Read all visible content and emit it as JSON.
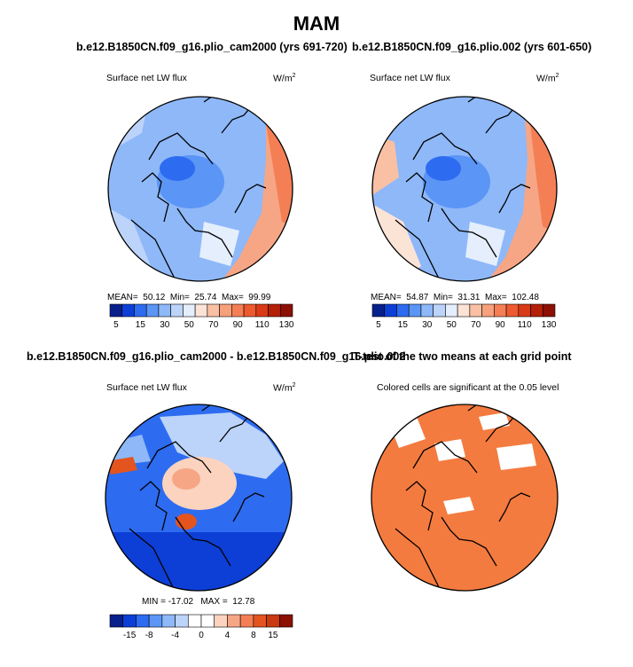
{
  "figure_title": "MAM",
  "panels": [
    {
      "title": "b.e12.B1850CN.f09_g16.plio_cam2000 (yrs 691-720)",
      "variable": "Surface net LW flux",
      "units_base": "W/m",
      "units_exp": "2",
      "stats": {
        "mean_label": "MEAN=",
        "mean": "50.12",
        "min_label": "Min=",
        "min": "25.74",
        "max_label": "Max=",
        "max": "99.99"
      }
    },
    {
      "title": "b.e12.B1850CN.f09_g16.plio.002 (yrs 601-650)",
      "variable": "Surface net LW flux",
      "units_base": "W/m",
      "units_exp": "2",
      "stats": {
        "mean_label": "MEAN=",
        "mean": "54.87",
        "min_label": "Min=",
        "min": "31.31",
        "max_label": "Max=",
        "max": "102.48"
      }
    },
    {
      "title": "b.e12.B1850CN.f09_g16.plio_cam2000 - b.e12.B1850CN.f09_g16.plio.002",
      "variable": "Surface net LW flux",
      "units_base": "W/m",
      "units_exp": "2",
      "stats_text": "MIN = -17.02   MAX =  12.78"
    },
    {
      "title": "T-test of the two means at each grid point",
      "subtitle": "Colored cells are significant at the 0.05 level"
    }
  ],
  "chart_data": [
    {
      "type": "heatmap",
      "projection": "north polar stereographic",
      "colorbar_ticks": [
        "5",
        "15",
        "30",
        "50",
        "70",
        "90",
        "110",
        "130"
      ],
      "colorbar_colors": [
        "#08208c",
        "#0d3fd6",
        "#2d6cf0",
        "#5b95f5",
        "#8eb8f8",
        "#bcd3fa",
        "#e4eefd",
        "#fbe3d6",
        "#f9c0a3",
        "#f7a07b",
        "#f47f55",
        "#ee5a2f",
        "#d93b16",
        "#b52008",
        "#8c1004"
      ],
      "summary": {
        "mean": 50.12,
        "min": 25.74,
        "max": 99.99
      }
    },
    {
      "type": "heatmap",
      "projection": "north polar stereographic",
      "colorbar_ticks": [
        "5",
        "15",
        "30",
        "50",
        "70",
        "90",
        "110",
        "130"
      ],
      "colorbar_colors": [
        "#08208c",
        "#0d3fd6",
        "#2d6cf0",
        "#5b95f5",
        "#8eb8f8",
        "#bcd3fa",
        "#e4eefd",
        "#fbe3d6",
        "#f9c0a3",
        "#f7a07b",
        "#f47f55",
        "#ee5a2f",
        "#d93b16",
        "#b52008",
        "#8c1004"
      ],
      "summary": {
        "mean": 54.87,
        "min": 31.31,
        "max": 102.48
      }
    },
    {
      "type": "heatmap",
      "projection": "north polar stereographic",
      "colorbar_ticks": [
        "-15",
        "-8",
        "-4",
        "0",
        "4",
        "8",
        "15"
      ],
      "colorbar_colors": [
        "#08208c",
        "#0d3fd6",
        "#2d6cf0",
        "#5b95f5",
        "#8eb8f8",
        "#bcd3fa",
        "#ffffff",
        "#ffffff",
        "#fbd3bf",
        "#f7a685",
        "#f47f55",
        "#e3541f",
        "#c93a12",
        "#8c1004"
      ],
      "summary": {
        "min": -17.02,
        "max": 12.78
      }
    },
    {
      "type": "heatmap",
      "projection": "north polar stereographic",
      "significant_color": "#f47b3f",
      "not_significant_color": "#ffffff",
      "significance_level": 0.05
    }
  ]
}
